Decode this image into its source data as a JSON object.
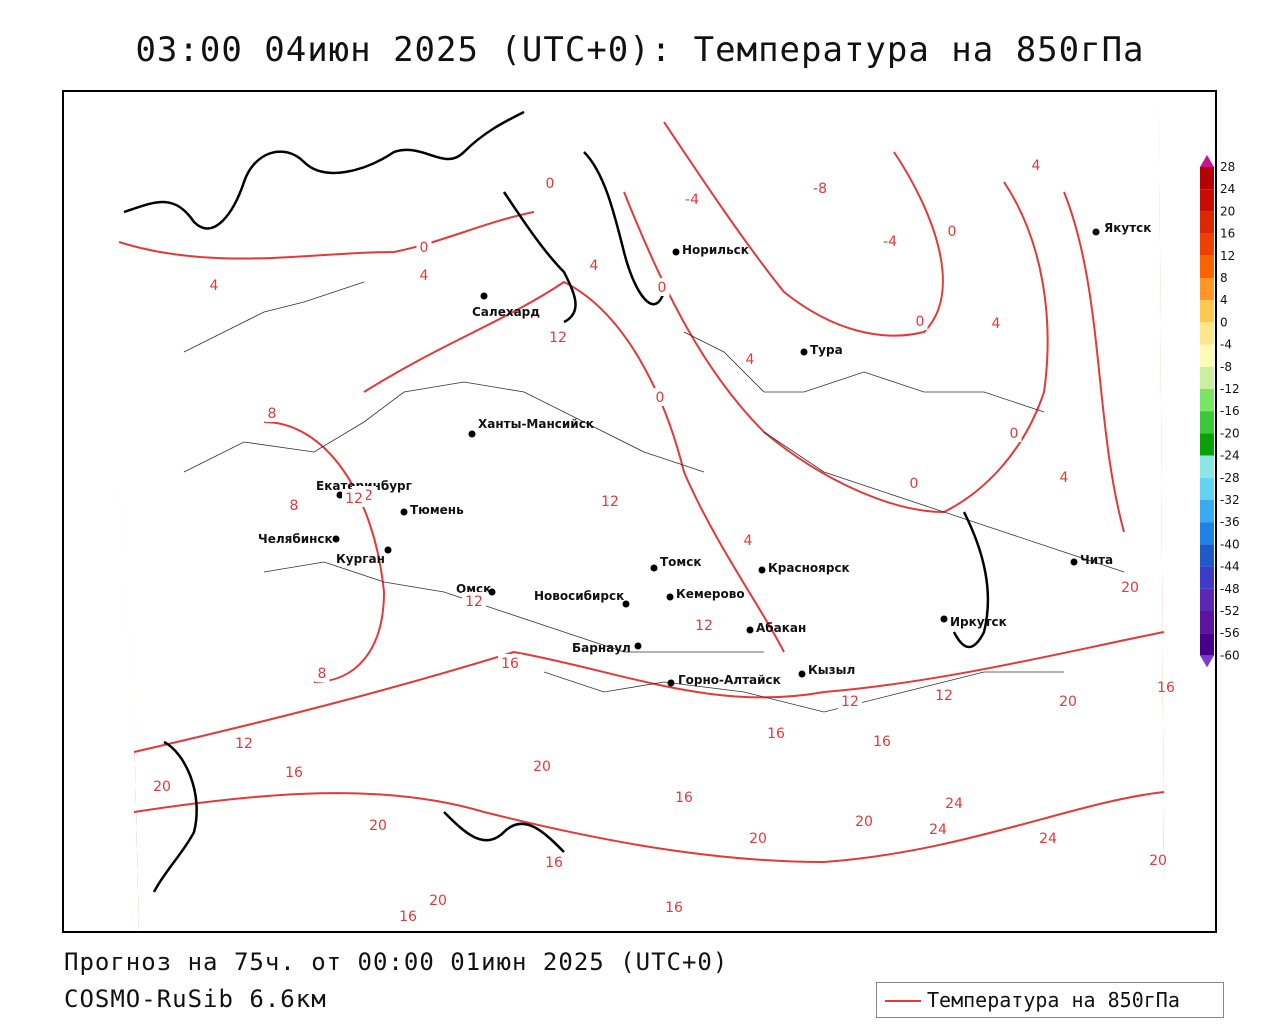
{
  "header": {
    "title": "03:00 04июн 2025 (UTC+0): Температура на 850гПа"
  },
  "footer": {
    "forecast": "Прогноз на 75ч. от 00:00 01июн 2025 (UTC+0)",
    "model": "COSMO-RuSib 6.6км"
  },
  "legend": {
    "label": "Температура на 850гПа",
    "line_color": "#e03a3a"
  },
  "colorbar": {
    "ticks": [
      "28",
      "24",
      "20",
      "16",
      "12",
      "8",
      "4",
      "0",
      "-4",
      "-8",
      "-12",
      "-16",
      "-20",
      "-24",
      "-28",
      "-32",
      "-36",
      "-40",
      "-44",
      "-48",
      "-52",
      "-56",
      "-60"
    ],
    "colors": [
      "#b40000",
      "#c80c00",
      "#dc2800",
      "#f04000",
      "#fa6400",
      "#ff9628",
      "#ffc850",
      "#ffe68c",
      "#fffab4",
      "#c8f0a0",
      "#78e664",
      "#3cc83c",
      "#0aa00a",
      "#8ce6e6",
      "#64d2f0",
      "#3caaf0",
      "#1e82e6",
      "#1e5ac8",
      "#3c3cc8",
      "#5a28b4",
      "#5a14a0",
      "#46008c"
    ],
    "top_arrow_color": "#c8148c",
    "bottom_arrow_color": "#7a3cc8"
  },
  "cities": [
    {
      "name": "Якутск"
    },
    {
      "name": "Норильск"
    },
    {
      "name": "Салехард"
    },
    {
      "name": "Тура"
    },
    {
      "name": "Ханты-Мансийск"
    },
    {
      "name": "Екатеринбург"
    },
    {
      "name": "Тюмень"
    },
    {
      "name": "Челябинск"
    },
    {
      "name": "Курган"
    },
    {
      "name": "Омск"
    },
    {
      "name": "Новосибирск"
    },
    {
      "name": "Томск"
    },
    {
      "name": "Красноярск"
    },
    {
      "name": "Кемерово"
    },
    {
      "name": "Абакан"
    },
    {
      "name": "Барнаул"
    },
    {
      "name": "Горно-Алтайск"
    },
    {
      "name": "Кызыл"
    },
    {
      "name": "Иркутск"
    },
    {
      "name": "Чита"
    }
  ],
  "contour_labels": [
    "4",
    "-8",
    "-4",
    "0",
    "4",
    "-4",
    "0",
    "0",
    "4",
    "0",
    "4",
    "4",
    "0",
    "4",
    "0",
    "8",
    "0",
    "8",
    "12",
    "12",
    "0",
    "4",
    "12",
    "12",
    "12",
    "12",
    "4",
    "8",
    "12",
    "16",
    "20",
    "16",
    "16",
    "12",
    "16",
    "20",
    "16",
    "20",
    "12",
    "20",
    "20",
    "24",
    "16",
    "20",
    "24",
    "24",
    "16",
    "20",
    "16",
    "20",
    "16",
    "20"
  ]
}
